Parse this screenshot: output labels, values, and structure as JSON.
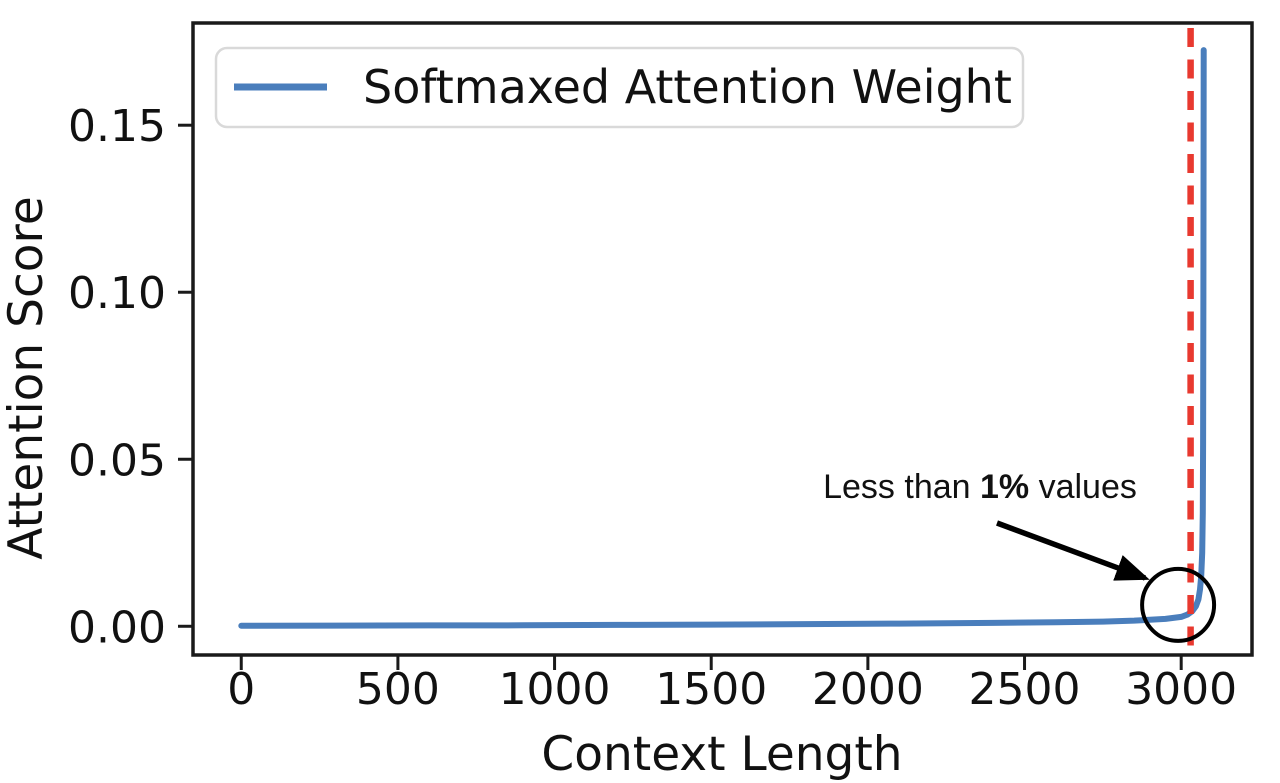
{
  "chart_data": {
    "type": "line",
    "title": "",
    "xlabel": "Context Length",
    "ylabel": "Attention Score",
    "grid": false,
    "legend": {
      "position": "upper left",
      "entries": [
        {
          "label": "Softmaxed Attention Weight",
          "color": "#4a7ebc"
        }
      ]
    },
    "xlim": [
      -154,
      3226
    ],
    "ylim": [
      -0.0086,
      0.1806
    ],
    "x_ticks": [
      0,
      500,
      1000,
      1500,
      2000,
      2500,
      3000
    ],
    "x_tick_labels": [
      "0",
      "500",
      "1000",
      "1500",
      "2000",
      "2500",
      "3000"
    ],
    "y_ticks": [
      0.0,
      0.05,
      0.1,
      0.15
    ],
    "y_tick_labels": [
      "0.00",
      "0.05",
      "0.10",
      "0.15"
    ],
    "series": [
      {
        "name": "Softmaxed Attention Weight",
        "color": "#4a7ebc",
        "points": [
          [
            0,
            0.00015
          ],
          [
            300,
            0.0002
          ],
          [
            600,
            0.00025
          ],
          [
            900,
            0.0003
          ],
          [
            1200,
            0.0004
          ],
          [
            1500,
            0.0005
          ],
          [
            1800,
            0.00065
          ],
          [
            2100,
            0.0008
          ],
          [
            2400,
            0.001
          ],
          [
            2600,
            0.0012
          ],
          [
            2750,
            0.0014
          ],
          [
            2850,
            0.0017
          ],
          [
            2950,
            0.0022
          ],
          [
            3000,
            0.0028
          ],
          [
            3020,
            0.0035
          ],
          [
            3035,
            0.0045
          ],
          [
            3047,
            0.006
          ],
          [
            3055,
            0.008
          ],
          [
            3060,
            0.011
          ],
          [
            3064,
            0.015
          ],
          [
            3067,
            0.022
          ],
          [
            3069,
            0.034
          ],
          [
            3070,
            0.055
          ],
          [
            3071,
            0.1
          ],
          [
            3072,
            0.1725
          ]
        ],
        "max_value": 0.1725,
        "x_max": 3072
      }
    ],
    "vline": {
      "x": 3030,
      "color": "#e8392f",
      "style": "dashed"
    },
    "annotation": {
      "prefix": "Less than ",
      "bold": "1%",
      "suffix": " values",
      "circle_center_x": 2990,
      "circle_center_y": 0.0064
    },
    "frame_color": "#1a1a1a"
  }
}
